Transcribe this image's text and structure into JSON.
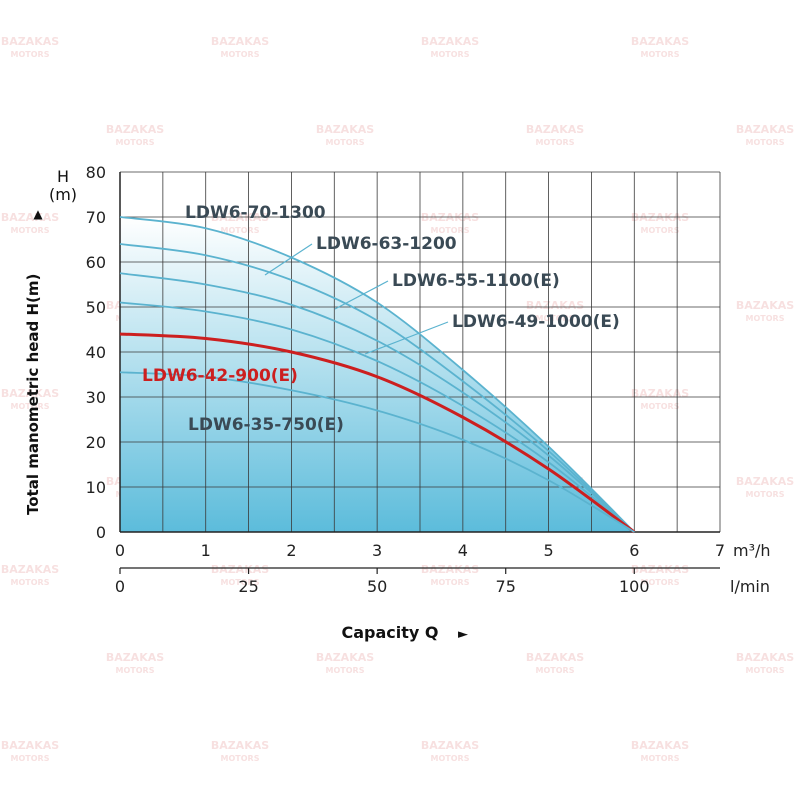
{
  "chart_data": {
    "type": "line",
    "title": "",
    "ylabel": "Total manometric head H(m)",
    "y_unit_label_line1": "H",
    "y_unit_label_line2": "(m)",
    "xlabel": "Capacity Q",
    "x_unit_primary": "m³/h",
    "x_unit_secondary": "l/min",
    "xlim": [
      0,
      7
    ],
    "ylim": [
      0,
      80
    ],
    "x_ticks": [
      "0",
      "1",
      "2",
      "3",
      "4",
      "5",
      "6",
      "7"
    ],
    "y_ticks": [
      "0",
      "10",
      "20",
      "30",
      "40",
      "50",
      "60",
      "70",
      "80"
    ],
    "secondary_x_ticks": [
      {
        "label": "0",
        "m3h": 0
      },
      {
        "label": "25",
        "m3h": 1.5
      },
      {
        "label": "50",
        "m3h": 3
      },
      {
        "label": "75",
        "m3h": 4.5
      },
      {
        "label": "100",
        "m3h": 6
      }
    ],
    "grid": true,
    "series": [
      {
        "name": "LDW6-70-1300",
        "color": "#5bb3cf",
        "x": [
          0,
          1,
          2,
          3,
          4,
          5,
          6
        ],
        "y": [
          70,
          67.5,
          61,
          51,
          36,
          19,
          0
        ]
      },
      {
        "name": "LDW6-63-1200",
        "color": "#5bb3cf",
        "x": [
          0,
          1,
          2,
          3,
          4,
          5,
          6
        ],
        "y": [
          64,
          61.5,
          56,
          47,
          33.5,
          18,
          0
        ]
      },
      {
        "name": "LDW6-55-1100(E)",
        "color": "#5bb3cf",
        "x": [
          0,
          1,
          2,
          3,
          4,
          5,
          6
        ],
        "y": [
          57.5,
          55,
          50.5,
          42.5,
          31,
          17,
          0
        ]
      },
      {
        "name": "LDW6-49-1000(E)",
        "color": "#5bb3cf",
        "x": [
          0,
          1,
          2,
          3,
          4,
          5,
          6
        ],
        "y": [
          51,
          49,
          45,
          38,
          28,
          15.5,
          0
        ]
      },
      {
        "name": "LDW6-42-900(E)",
        "color": "#cc1f1f",
        "x": [
          0,
          1,
          2,
          3,
          4,
          5,
          6
        ],
        "y": [
          44,
          43,
          40,
          34.5,
          25.5,
          14,
          0
        ]
      },
      {
        "name": "LDW6-35-750(E)",
        "color": "#5bb3cf",
        "x": [
          0,
          1,
          2,
          3,
          4,
          5,
          6
        ],
        "y": [
          35.5,
          34.5,
          31.5,
          27,
          20.5,
          11.5,
          0
        ]
      }
    ]
  },
  "colors": {
    "grid": "#3a3a3a",
    "axis": "#222222",
    "fill_top": "#ffffff",
    "fill_bottom": "#5cbcdb",
    "highlight": "#cc1f1f",
    "curve": "#5bb3cf"
  },
  "watermark": {
    "line1": "BAZAKAS",
    "line2": "MOTORS"
  }
}
